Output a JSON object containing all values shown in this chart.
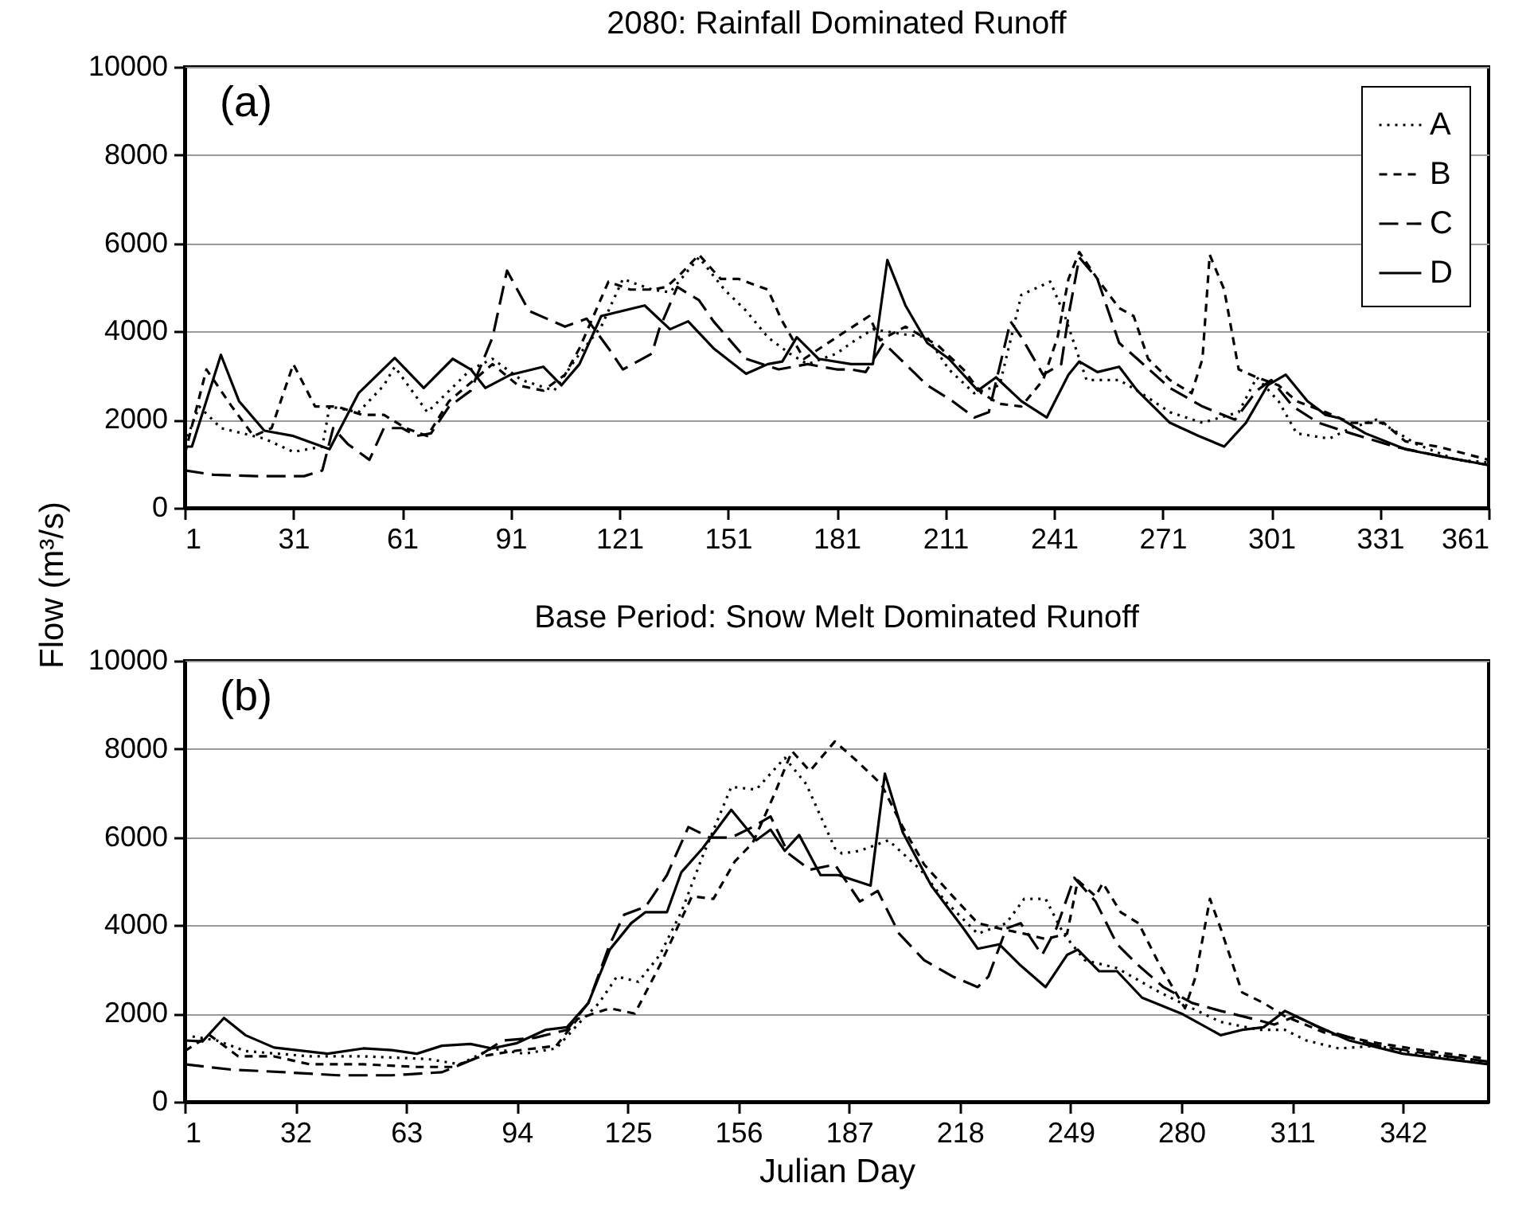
{
  "chart_data": [
    {
      "type": "line",
      "title": "2080: Rainfall Dominated Runoff",
      "ylabel": "Flow (m³/s)",
      "annotations": [
        "(a)"
      ],
      "xlim": [
        1,
        361
      ],
      "xticks": [
        1,
        31,
        61,
        91,
        121,
        151,
        181,
        211,
        241,
        271,
        301,
        331,
        361
      ],
      "ylim": [
        0,
        10000
      ],
      "yticks": [
        0,
        2000,
        4000,
        6000,
        8000,
        10000
      ],
      "grid": "y",
      "legend": "top right",
      "series": [
        {
          "name": "A",
          "color": "#000000",
          "line_style": "dotted",
          "x": [
            1,
            5,
            11,
            23,
            31,
            39,
            41,
            49,
            56,
            59,
            68,
            80,
            86,
            94,
            103,
            109,
            116,
            122,
            130,
            135,
            143,
            150,
            156,
            162,
            168,
            173,
            181,
            185,
            191,
            200,
            206,
            212,
            219,
            226,
            232,
            240,
            244,
            250,
            259,
            264,
            273,
            282,
            292,
            297,
            303,
            308,
            317,
            323,
            330,
            341,
            352,
            361
          ],
          "values": [
            1450,
            2300,
            1810,
            1570,
            1270,
            1390,
            2300,
            2170,
            2780,
            3200,
            2170,
            3140,
            3380,
            2900,
            2660,
            3380,
            4110,
            5190,
            4950,
            4890,
            5680,
            4950,
            4470,
            3870,
            3500,
            3260,
            3500,
            3740,
            4050,
            3930,
            3870,
            3140,
            2600,
            2780,
            4830,
            5130,
            4350,
            2900,
            2900,
            2660,
            2170,
            1930,
            2170,
            2960,
            2420,
            1690,
            1570,
            1810,
            2000,
            1450,
            1090,
            1030
          ]
        },
        {
          "name": "B",
          "color": "#000000",
          "line_style": "dashed",
          "x": [
            1,
            7,
            14,
            20,
            25,
            31,
            37,
            43,
            50,
            56,
            62,
            68,
            74,
            86,
            93,
            100,
            106,
            110,
            118,
            124,
            130,
            134,
            138,
            143,
            149,
            154,
            162,
            166,
            172,
            181,
            190,
            193,
            200,
            209,
            216,
            221,
            226,
            232,
            238,
            242,
            245,
            248,
            253,
            259,
            263,
            267,
            273,
            279,
            282,
            284,
            288,
            292,
            297,
            303,
            308,
            316,
            323,
            332,
            338,
            347,
            361
          ],
          "values": [
            1210,
            3140,
            2300,
            1630,
            1810,
            3260,
            2300,
            2300,
            2110,
            2110,
            1810,
            1630,
            2420,
            3260,
            2780,
            2660,
            3020,
            3620,
            5130,
            4950,
            4950,
            5010,
            5310,
            5740,
            5190,
            5190,
            4950,
            4230,
            3380,
            3870,
            4350,
            3800,
            4110,
            3680,
            3140,
            2600,
            2360,
            2300,
            2900,
            3870,
            5190,
            5800,
            5190,
            4530,
            4350,
            3380,
            2900,
            2600,
            3380,
            5740,
            4950,
            3140,
            2960,
            2780,
            2420,
            2170,
            1930,
            1930,
            1510,
            1390,
            1090
          ]
        },
        {
          "name": "C",
          "color": "#000000",
          "line_style": "dashed",
          "x": [
            1,
            9,
            21,
            34,
            39,
            42,
            46,
            52,
            56,
            61,
            65,
            69,
            74,
            80,
            86,
            90,
            96,
            106,
            112,
            118,
            122,
            130,
            132,
            137,
            143,
            147,
            156,
            165,
            173,
            181,
            185,
            189,
            194,
            200,
            206,
            213,
            219,
            223,
            229,
            232,
            238,
            243,
            245,
            248,
            253,
            259,
            264,
            273,
            282,
            291,
            297,
            301,
            307,
            314,
            323,
            335,
            349,
            361
          ],
          "values": [
            850,
            750,
            720,
            720,
            850,
            1810,
            1450,
            1090,
            1810,
            1810,
            1630,
            1690,
            2300,
            2660,
            3870,
            5380,
            4470,
            4110,
            4290,
            3620,
            3140,
            3500,
            4050,
            5010,
            4710,
            4230,
            3380,
            3140,
            3260,
            3140,
            3140,
            3080,
            3740,
            3260,
            2780,
            2420,
            2050,
            2170,
            4230,
            3870,
            3020,
            3260,
            4350,
            5680,
            5190,
            3740,
            3380,
            2720,
            2300,
            2000,
            2660,
            2900,
            2300,
            1930,
            1690,
            1390,
            1150,
            970
          ]
        },
        {
          "name": "D",
          "color": "#000000",
          "line_style": "solid",
          "x": [
            1,
            3,
            11,
            16,
            23,
            31,
            41,
            49,
            59,
            67,
            75,
            80,
            84,
            91,
            100,
            105,
            110,
            116,
            128,
            135,
            140,
            147,
            156,
            162,
            166,
            170,
            176,
            185,
            191,
            195,
            200,
            206,
            212,
            220,
            225,
            232,
            239,
            245,
            248,
            253,
            259,
            264,
            273,
            281,
            288,
            294,
            300,
            305,
            311,
            316,
            320,
            327,
            338,
            349,
            361
          ],
          "values": [
            1390,
            1390,
            3470,
            2420,
            1750,
            1630,
            1330,
            2600,
            3400,
            2720,
            3380,
            3140,
            2720,
            3020,
            3200,
            2780,
            3260,
            4350,
            4590,
            4050,
            4230,
            3620,
            3040,
            3260,
            3320,
            3870,
            3380,
            3260,
            3260,
            5620,
            4590,
            3740,
            3380,
            2660,
            2960,
            2420,
            2050,
            3020,
            3320,
            3080,
            3200,
            2660,
            1930,
            1630,
            1390,
            1930,
            2780,
            3020,
            2420,
            2110,
            2030,
            1690,
            1330,
            1150,
            970
          ]
        }
      ]
    },
    {
      "type": "line",
      "title": "Base Period: Snow Melt Dominated Runoff",
      "xlabel": "Julian Day",
      "annotations": [
        "(b)"
      ],
      "xlim": [
        1,
        366
      ],
      "xticks": [
        1,
        32,
        63,
        94,
        125,
        156,
        187,
        218,
        249,
        280,
        311,
        342
      ],
      "ylim": [
        0,
        10000
      ],
      "yticks": [
        0,
        2000,
        4000,
        6000,
        8000,
        10000
      ],
      "grid": "y",
      "series": [
        {
          "color": "#000000",
          "line_style": "dotted",
          "x": [
            1,
            10,
            18,
            36,
            51,
            69,
            78,
            87,
            96,
            105,
            111,
            117,
            122,
            128,
            134,
            140,
            146,
            154,
            161,
            169,
            175,
            183,
            185,
            190,
            198,
            207,
            214,
            223,
            231,
            236,
            242,
            247,
            253,
            262,
            274,
            283,
            291,
            302,
            309,
            315,
            324,
            335,
            346,
            366
          ],
          "values": [
            1510,
            1390,
            1150,
            1030,
            1030,
            970,
            850,
            1210,
            1090,
            1210,
            1750,
            2240,
            2840,
            2720,
            3330,
            4300,
            5570,
            7140,
            7080,
            7800,
            7200,
            5750,
            5630,
            5690,
            5930,
            5260,
            4540,
            3810,
            4050,
            4600,
            4600,
            3810,
            3210,
            3030,
            2480,
            2120,
            1810,
            1630,
            1630,
            1390,
            1210,
            1270,
            1090,
            910
          ]
        },
        {
          "color": "#000000",
          "line_style": "dashed",
          "x": [
            1,
            8,
            16,
            26,
            36,
            51,
            66,
            76,
            84,
            93,
            105,
            111,
            120,
            127,
            134,
            143,
            149,
            155,
            160,
            166,
            171,
            176,
            183,
            189,
            196,
            202,
            208,
            216,
            223,
            229,
            236,
            242,
            248,
            251,
            256,
            258,
            263,
            268,
            274,
            281,
            284,
            288,
            291,
            297,
            303,
            309,
            320,
            335,
            349,
            366
          ],
          "values": [
            1150,
            1510,
            1030,
            1030,
            850,
            850,
            790,
            790,
            1030,
            1150,
            1270,
            1880,
            2120,
            2000,
            3090,
            4660,
            4600,
            5450,
            5870,
            6960,
            7950,
            7500,
            8170,
            7740,
            7200,
            6230,
            5380,
            4660,
            4050,
            3930,
            3810,
            3690,
            3810,
            5020,
            4660,
            4960,
            4300,
            4050,
            3090,
            2120,
            2840,
            4600,
            3930,
            2480,
            2240,
            1940,
            1570,
            1330,
            1150,
            970
          ]
        },
        {
          "color": "#000000",
          "line_style": "dashed",
          "x": [
            1,
            14,
            29,
            44,
            59,
            73,
            82,
            90,
            99,
            108,
            114,
            120,
            124,
            130,
            136,
            142,
            148,
            154,
            160,
            165,
            170,
            176,
            183,
            190,
            195,
            201,
            208,
            216,
            223,
            226,
            231,
            235,
            241,
            245,
            250,
            256,
            262,
            268,
            275,
            283,
            291,
            300,
            306,
            312,
            320,
            335,
            349,
            366
          ],
          "values": [
            850,
            730,
            670,
            600,
            600,
            670,
            970,
            1390,
            1450,
            1630,
            2240,
            3570,
            4240,
            4420,
            5140,
            6230,
            5990,
            5990,
            6230,
            6470,
            5630,
            5260,
            5380,
            4540,
            4780,
            3810,
            3210,
            2840,
            2600,
            2840,
            3930,
            4050,
            3330,
            3930,
            5080,
            4540,
            3570,
            3090,
            2600,
            2240,
            2060,
            1880,
            1750,
            1940,
            1630,
            1270,
            1090,
            910
          ]
        },
        {
          "color": "#000000",
          "line_style": "solid",
          "x": [
            1,
            6,
            12,
            18,
            26,
            41,
            51,
            59,
            66,
            73,
            81,
            87,
            94,
            102,
            108,
            114,
            120,
            126,
            130,
            136,
            140,
            146,
            154,
            161,
            165,
            169,
            173,
            179,
            184,
            193,
            197,
            202,
            210,
            219,
            223,
            229,
            235,
            242,
            248,
            251,
            257,
            262,
            269,
            280,
            291,
            297,
            303,
            309,
            317,
            327,
            342,
            366
          ],
          "values": [
            1390,
            1370,
            1900,
            1510,
            1230,
            1090,
            1210,
            1170,
            1090,
            1270,
            1310,
            1210,
            1330,
            1630,
            1690,
            2240,
            3450,
            4050,
            4300,
            4300,
            5200,
            5750,
            6620,
            5930,
            6170,
            5690,
            6050,
            5140,
            5140,
            4900,
            7440,
            6110,
            4900,
            3930,
            3470,
            3570,
            3090,
            2600,
            3330,
            3450,
            2960,
            2960,
            2360,
            2000,
            1510,
            1630,
            1690,
            2060,
            1750,
            1390,
            1090,
            850
          ]
        }
      ]
    }
  ]
}
